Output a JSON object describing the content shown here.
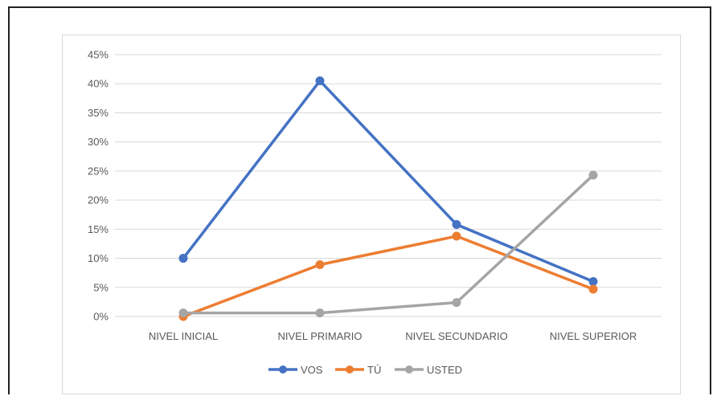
{
  "chart_data": {
    "type": "line",
    "categories": [
      "NIVEL INICIAL",
      "NIVEL PRIMARIO",
      "NIVEL SECUNDARIO",
      "NIVEL SUPERIOR"
    ],
    "series": [
      {
        "name": "VOS",
        "color": "#4472c4",
        "values": [
          10,
          40.5,
          15.8,
          6
        ]
      },
      {
        "name": "TÚ",
        "color": "#ed7d31",
        "values": [
          0,
          8.9,
          13.8,
          4.7
        ]
      },
      {
        "name": "USTED",
        "color": "#a5a5a5",
        "values": [
          0.6,
          0.6,
          2.4,
          24.3
        ]
      }
    ],
    "yticks": [
      "0%",
      "5%",
      "10%",
      "15%",
      "20%",
      "25%",
      "30%",
      "35%",
      "40%",
      "45%"
    ],
    "ylim": [
      0,
      45
    ],
    "grid": true,
    "legend_position": "bottom",
    "title": "",
    "xlabel": "",
    "ylabel": ""
  }
}
